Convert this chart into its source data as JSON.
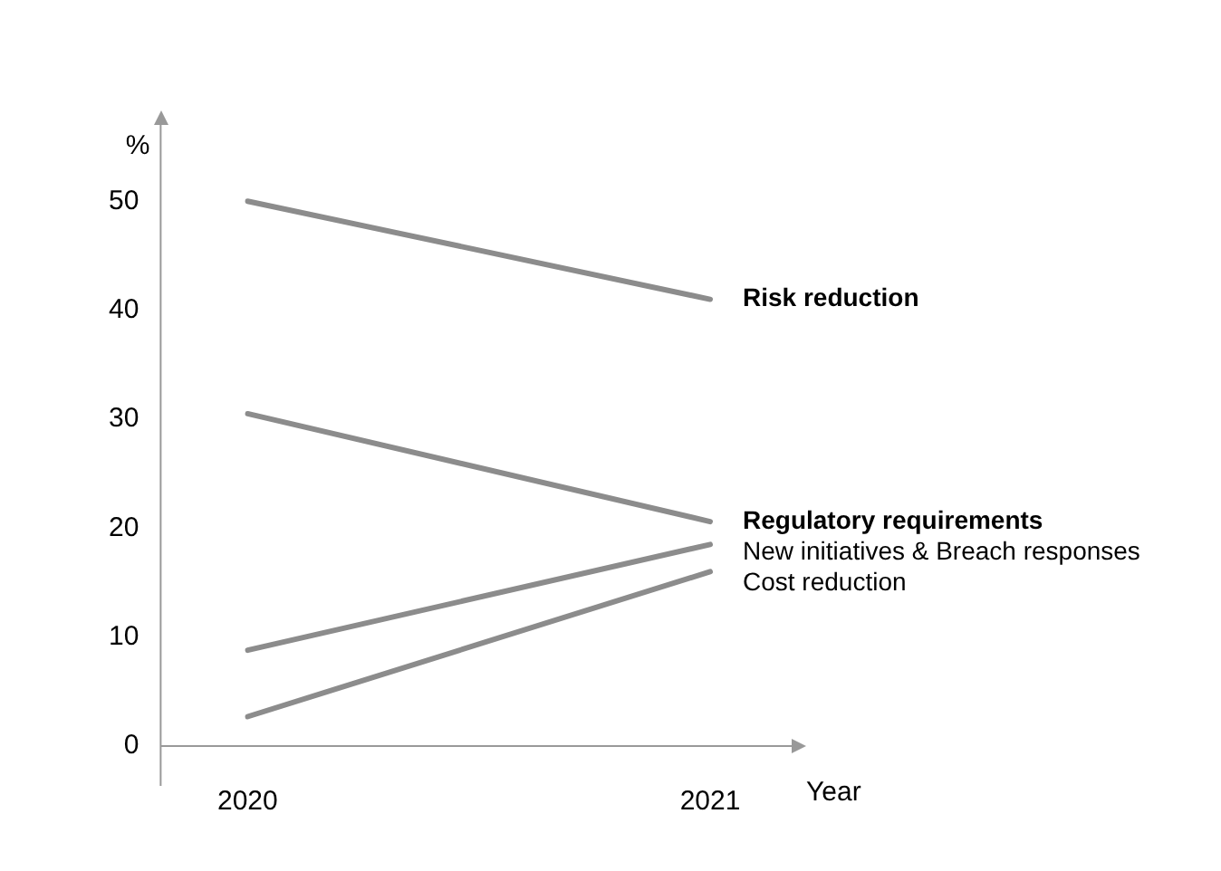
{
  "chart_data": {
    "type": "line",
    "ylabel": "%",
    "xlabel": "Year",
    "categories": [
      "2020",
      "2021"
    ],
    "ylim": [
      0,
      57
    ],
    "yticks": [
      0,
      10,
      20,
      30,
      40,
      50
    ],
    "grid": false,
    "legend": false,
    "marker": "none",
    "line_style": "solid",
    "series": [
      {
        "name": "Risk reduction",
        "color": "#8c8c8c",
        "values": [
          50,
          41
        ]
      },
      {
        "name": "Regulatory requirements",
        "color": "#8c8c8c",
        "values": [
          30.5,
          20.6
        ]
      },
      {
        "name": "New initiatives & Breach responses",
        "color": "#8c8c8c",
        "values": [
          8.8,
          18.5
        ]
      },
      {
        "name": "Cost reduction",
        "color": "#8c8c8c",
        "values": [
          2.7,
          16
        ]
      }
    ]
  }
}
